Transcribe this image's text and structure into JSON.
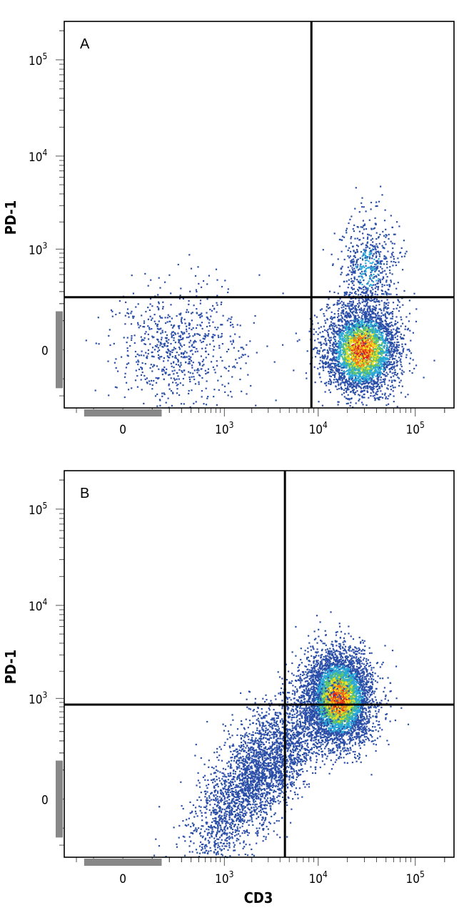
{
  "colors": {
    "density_low": "#2b4fa8",
    "density_mid_low": "#2aa8d8",
    "density_mid": "#5ec36a",
    "density_mid_high": "#f2e01f",
    "density_high": "#f07a18",
    "density_peak": "#d81e1e",
    "gate_line": "#000000",
    "frame": "#000000",
    "axis_stub": "#888888"
  },
  "chart_data": [
    {
      "type": "scatter",
      "panel_label": "A",
      "ylabel": "PD-1",
      "xlabel": "",
      "x_scale": "biexponential",
      "y_scale": "biexponential",
      "x_ticks": [
        {
          "value": 0,
          "base": "0",
          "sup": ""
        },
        {
          "value": 1000,
          "base": "10",
          "sup": "3"
        },
        {
          "value": 10000,
          "base": "10",
          "sup": "4"
        },
        {
          "value": 100000,
          "base": "10",
          "sup": "5"
        }
      ],
      "y_ticks": [
        {
          "value": 0,
          "base": "0",
          "sup": ""
        },
        {
          "value": 1000,
          "base": "10",
          "sup": "3"
        },
        {
          "value": 10000,
          "base": "10",
          "sup": "4"
        },
        {
          "value": 100000,
          "base": "10",
          "sup": "5"
        }
      ],
      "xlim": [
        -300,
        250000
      ],
      "ylim": [
        -300,
        250000
      ],
      "gate_x": 8500,
      "gate_y": 250,
      "populations": [
        {
          "name": "main",
          "count": 3600,
          "x_center": 28000,
          "x_spread": 0.19,
          "y_center": 0,
          "y_spread": 0.23,
          "density_peak": 1.0
        },
        {
          "name": "upper-tail",
          "count": 650,
          "x_center": 32000,
          "x_spread": 0.16,
          "y_center": 600,
          "y_spread": 0.3,
          "density_peak": 0.25
        },
        {
          "name": "negative",
          "count": 750,
          "x_center": 280,
          "x_spread": 0.33,
          "y_center": 0,
          "y_spread": 0.34,
          "density_peak": 0.1
        }
      ]
    },
    {
      "type": "scatter",
      "panel_label": "B",
      "ylabel": "PD-1",
      "xlabel": "CD3",
      "x_scale": "biexponential",
      "y_scale": "biexponential",
      "x_ticks": [
        {
          "value": 0,
          "base": "0",
          "sup": ""
        },
        {
          "value": 1000,
          "base": "10",
          "sup": "3"
        },
        {
          "value": 10000,
          "base": "10",
          "sup": "4"
        },
        {
          "value": 100000,
          "base": "10",
          "sup": "5"
        }
      ],
      "y_ticks": [
        {
          "value": 0,
          "base": "0",
          "sup": ""
        },
        {
          "value": 1000,
          "base": "10",
          "sup": "3"
        },
        {
          "value": 10000,
          "base": "10",
          "sup": "4"
        },
        {
          "value": 100000,
          "base": "10",
          "sup": "5"
        }
      ],
      "xlim": [
        -300,
        250000
      ],
      "ylim": [
        -300,
        250000
      ],
      "gate_x": 4500,
      "gate_y": 850,
      "populations": [
        {
          "name": "main",
          "count": 4800,
          "x_center": 16000,
          "x_spread": 0.17,
          "y_center": 1000,
          "y_spread": 0.24,
          "density_peak": 1.0
        },
        {
          "name": "diagonal-tail",
          "count": 3200,
          "x_center": 2500,
          "x_spread": 0.35,
          "y_center": 100,
          "y_spread": 0.3,
          "density_peak": 0.12
        }
      ]
    }
  ]
}
